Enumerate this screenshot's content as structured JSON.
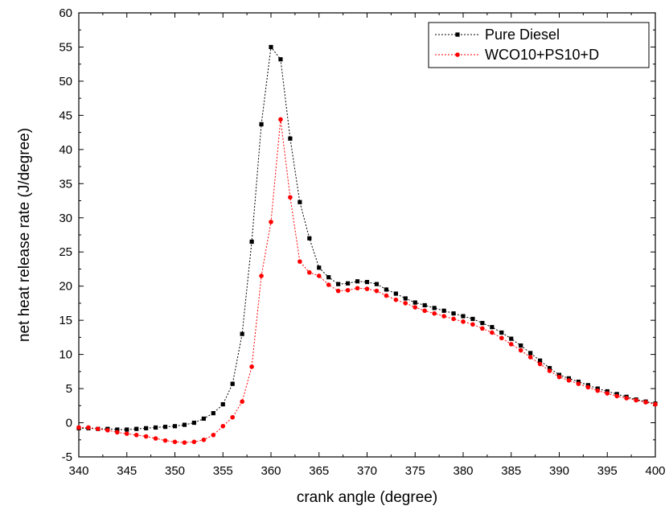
{
  "chart_data": {
    "type": "line",
    "title": "",
    "xlabel": "crank angle (degree)",
    "ylabel": "net heat release rate (J/degree)",
    "xlim": [
      340,
      400
    ],
    "ylim": [
      -5,
      60
    ],
    "xticks": [
      340,
      345,
      350,
      355,
      360,
      365,
      370,
      375,
      380,
      385,
      390,
      395,
      400
    ],
    "yticks": [
      -5,
      0,
      5,
      10,
      15,
      20,
      25,
      30,
      35,
      40,
      45,
      50,
      55,
      60
    ],
    "grid": false,
    "legend_position": "top-right",
    "x": [
      340,
      341,
      342,
      343,
      344,
      345,
      346,
      347,
      348,
      349,
      350,
      351,
      352,
      353,
      354,
      355,
      356,
      357,
      358,
      359,
      360,
      361,
      362,
      363,
      364,
      365,
      366,
      367,
      368,
      369,
      370,
      371,
      372,
      373,
      374,
      375,
      376,
      377,
      378,
      379,
      380,
      381,
      382,
      383,
      384,
      385,
      386,
      387,
      388,
      389,
      390,
      391,
      392,
      393,
      394,
      395,
      396,
      397,
      398,
      399,
      400
    ],
    "series": [
      {
        "name": "Pure Diesel",
        "color": "#000000",
        "marker": "square",
        "values": [
          -0.8,
          -0.8,
          -0.9,
          -0.9,
          -1.0,
          -1.0,
          -0.9,
          -0.8,
          -0.7,
          -0.6,
          -0.5,
          -0.3,
          0.0,
          0.6,
          1.4,
          2.7,
          5.7,
          13.0,
          26.5,
          43.7,
          55.0,
          53.2,
          41.6,
          32.3,
          27.0,
          22.7,
          21.3,
          20.3,
          20.4,
          20.7,
          20.6,
          20.3,
          19.5,
          18.9,
          18.2,
          17.6,
          17.2,
          16.8,
          16.4,
          16.0,
          15.6,
          15.2,
          14.6,
          14.0,
          13.2,
          12.3,
          11.3,
          10.2,
          9.1,
          8.0,
          7.0,
          6.5,
          6.0,
          5.5,
          5.0,
          4.6,
          4.2,
          3.8,
          3.4,
          3.1,
          2.8
        ]
      },
      {
        "name": "WCO10+PS10+D",
        "color": "#ff0000",
        "marker": "circle",
        "values": [
          -0.7,
          -0.7,
          -0.9,
          -1.1,
          -1.4,
          -1.6,
          -1.8,
          -2.0,
          -2.3,
          -2.6,
          -2.8,
          -2.9,
          -2.8,
          -2.5,
          -1.8,
          -0.5,
          0.8,
          3.1,
          8.2,
          21.5,
          29.4,
          44.4,
          33.0,
          23.6,
          22.0,
          21.5,
          20.2,
          19.3,
          19.4,
          19.7,
          19.6,
          19.3,
          18.6,
          18.0,
          17.5,
          16.9,
          16.4,
          16.0,
          15.6,
          15.2,
          14.8,
          14.4,
          13.8,
          13.2,
          12.4,
          11.5,
          10.6,
          9.6,
          8.6,
          7.6,
          6.7,
          6.2,
          5.7,
          5.2,
          4.7,
          4.3,
          3.9,
          3.6,
          3.3,
          3.0,
          2.7
        ]
      }
    ]
  }
}
